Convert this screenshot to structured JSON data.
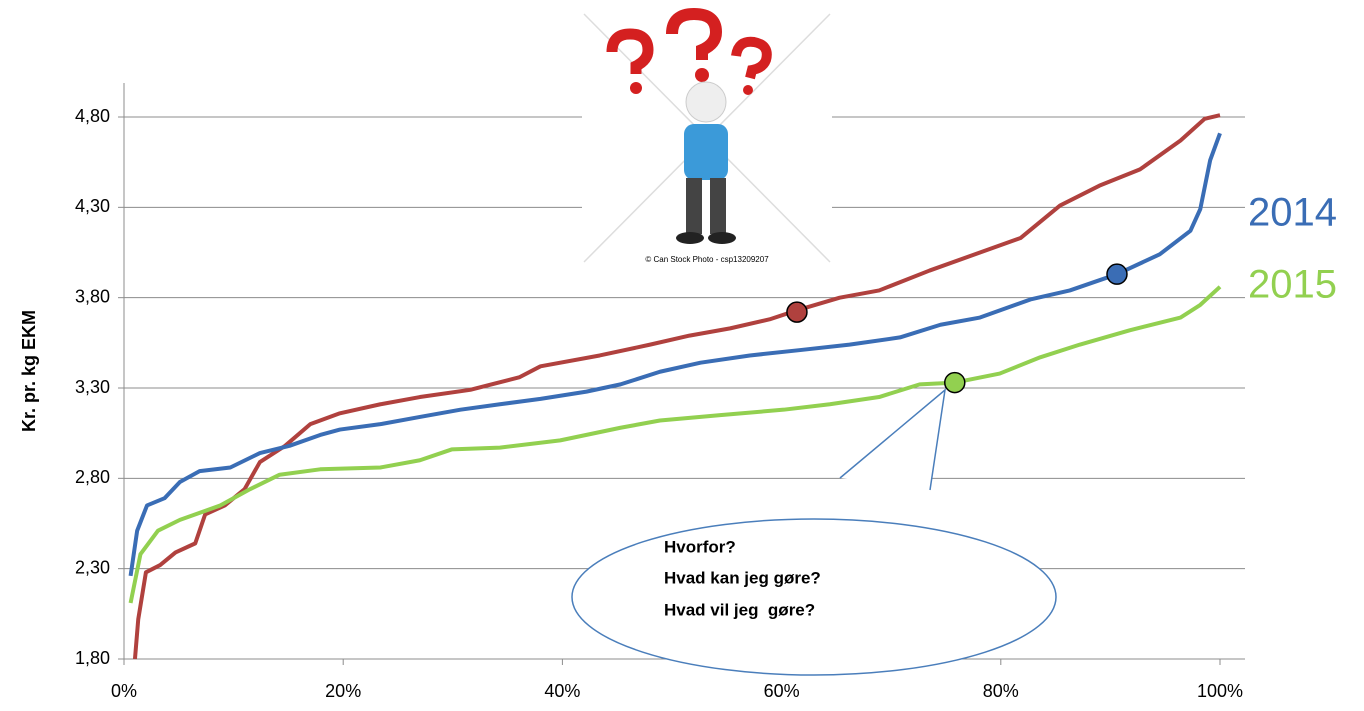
{
  "chart_data": {
    "type": "line",
    "ylabel": "Kr. pr. kg EKM",
    "xlim": [
      0,
      100
    ],
    "xticks": [
      {
        "value": 0,
        "label": "0%"
      },
      {
        "value": 20,
        "label": "20%"
      },
      {
        "value": 40,
        "label": "40%"
      },
      {
        "value": 60,
        "label": "60%"
      },
      {
        "value": 80,
        "label": "80%"
      },
      {
        "value": 100,
        "label": "100%"
      }
    ],
    "ylim": [
      1.8,
      4.8
    ],
    "yticks": [
      {
        "value": 1.8,
        "label": "1,80"
      },
      {
        "value": 2.3,
        "label": "2,30"
      },
      {
        "value": 2.8,
        "label": "2,80"
      },
      {
        "value": 3.3,
        "label": "3,30"
      },
      {
        "value": 3.8,
        "label": "3,80"
      },
      {
        "value": 4.3,
        "label": "4,30"
      },
      {
        "value": 4.8,
        "label": "4,80"
      }
    ],
    "grid": true,
    "series": [
      {
        "color": "#b0413e",
        "x": [
          1,
          1.3,
          2.0,
          3.3,
          4.7,
          6.5,
          7.4,
          9.2,
          11,
          12.4,
          14.7,
          17,
          19.7,
          23.4,
          27,
          31.6,
          36.1,
          38,
          43.4,
          48,
          51.6,
          55.3,
          58.9,
          61.4,
          65.3,
          68.9,
          73.5,
          78.1,
          81.8,
          85.4,
          89,
          92.7,
          96.4,
          98.6,
          100
        ],
        "values": [
          1.8,
          2.02,
          2.28,
          2.32,
          2.39,
          2.44,
          2.6,
          2.65,
          2.74,
          2.89,
          2.98,
          3.1,
          3.16,
          3.21,
          3.25,
          3.29,
          3.36,
          3.42,
          3.48,
          3.54,
          3.59,
          3.63,
          3.68,
          3.73,
          3.8,
          3.84,
          3.95,
          4.05,
          4.13,
          4.31,
          4.42,
          4.51,
          4.67,
          4.79,
          4.81
        ],
        "marker": {
          "x": 61.4,
          "y": 3.72
        }
      },
      {
        "name": "2014",
        "color": "#3a6db5",
        "x": [
          0.6,
          1.2,
          2.1,
          3.7,
          5.1,
          6.9,
          9.7,
          12.4,
          15.1,
          17.9,
          19.7,
          23.4,
          27,
          30.7,
          34.3,
          38,
          42.2,
          45.3,
          48.9,
          52.6,
          57.1,
          61.7,
          66.2,
          70.8,
          74.5,
          78.1,
          82.7,
          86.3,
          90.6,
          94.5,
          97.3,
          98.2,
          99.1,
          100
        ],
        "values": [
          2.26,
          2.51,
          2.65,
          2.69,
          2.78,
          2.84,
          2.86,
          2.94,
          2.98,
          3.04,
          3.07,
          3.1,
          3.14,
          3.18,
          3.21,
          3.24,
          3.28,
          3.32,
          3.39,
          3.44,
          3.48,
          3.51,
          3.54,
          3.58,
          3.65,
          3.69,
          3.79,
          3.84,
          3.93,
          4.04,
          4.17,
          4.29,
          4.56,
          4.71
        ],
        "marker": {
          "x": 90.6,
          "y": 3.93
        }
      },
      {
        "name": "2015",
        "color": "#92d050",
        "x": [
          0.6,
          1.5,
          3.1,
          5.1,
          8.8,
          11.5,
          14.2,
          17.9,
          23.4,
          27,
          29.9,
          34.3,
          39.8,
          45.3,
          48.9,
          54.4,
          60.2,
          64.4,
          68.9,
          72.6,
          75.8,
          79.9,
          83.6,
          87.2,
          91.8,
          96.4,
          98.2,
          100
        ],
        "values": [
          2.11,
          2.38,
          2.51,
          2.57,
          2.65,
          2.74,
          2.82,
          2.85,
          2.86,
          2.9,
          2.96,
          2.97,
          3.01,
          3.08,
          3.12,
          3.15,
          3.18,
          3.21,
          3.25,
          3.32,
          3.33,
          3.38,
          3.47,
          3.54,
          3.62,
          3.69,
          3.76,
          3.86
        ],
        "marker": {
          "x": 75.8,
          "y": 3.33
        }
      }
    ],
    "callout": [
      "Hvorfor?",
      "Hvad kan jeg gøre?",
      "Hvad vil jeg  gøre?"
    ],
    "image_caption": "© Can Stock Photo - csp13209207"
  }
}
